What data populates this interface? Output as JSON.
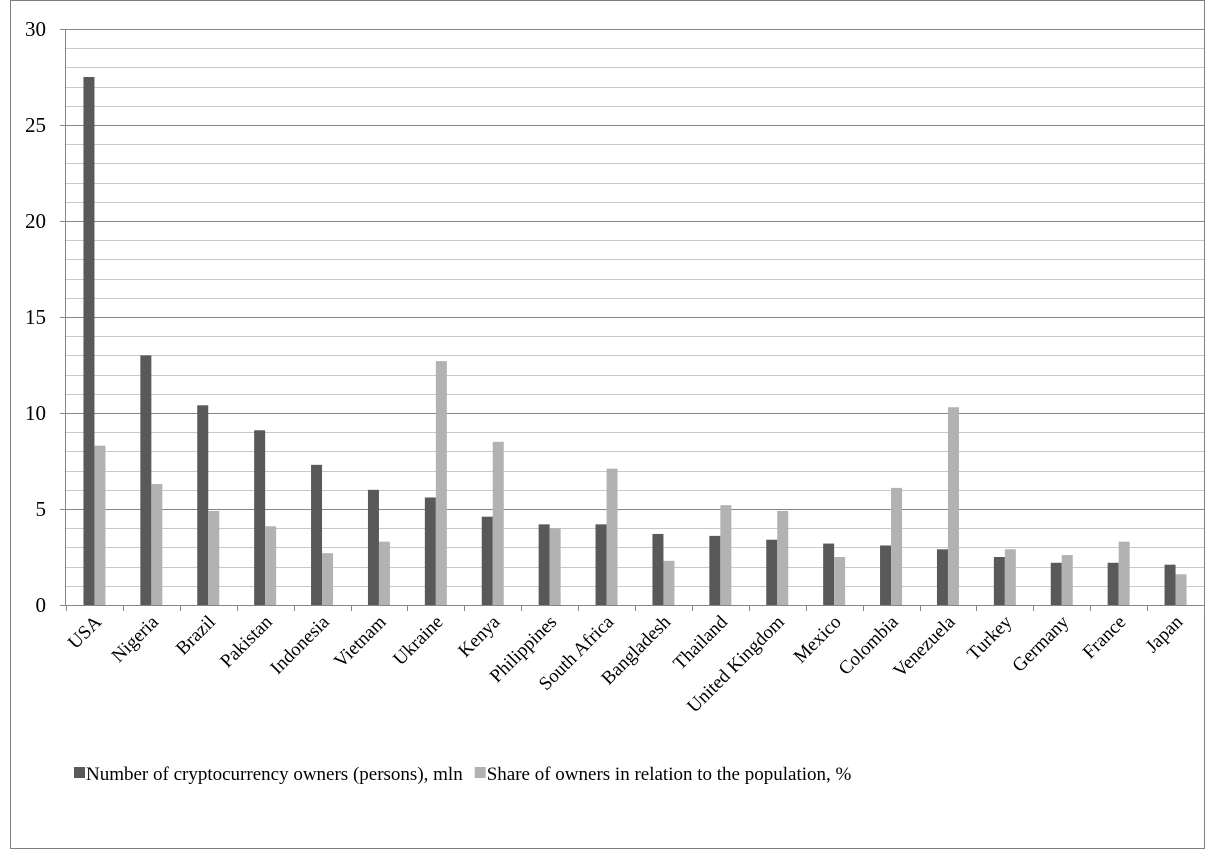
{
  "chart_data": {
    "type": "bar",
    "categories": [
      "USA",
      "Nigeria",
      "Brazil",
      "Pakistan",
      "Indonesia",
      "Vietnam",
      "Ukraine",
      "Kenya",
      "Philippines",
      "South Africa",
      "Bangladesh",
      "Thailand",
      "United Kingdom",
      "Mexico",
      "Colombia",
      "Venezuela",
      "Turkey",
      "Germany",
      "France",
      "Japan"
    ],
    "series": [
      {
        "name": "Number of cryptocurrency owners (persons), mln",
        "color": "#595959",
        "values": [
          27.5,
          13.0,
          10.4,
          9.1,
          7.3,
          6.0,
          5.6,
          4.6,
          4.2,
          4.2,
          3.7,
          3.6,
          3.4,
          3.2,
          3.1,
          2.9,
          2.5,
          2.2,
          2.2,
          2.1
        ]
      },
      {
        "name": "Share of owners in relation to the population, %",
        "color": "#b2b2b2",
        "values": [
          8.3,
          6.3,
          4.9,
          4.1,
          2.7,
          3.3,
          12.7,
          8.5,
          4.0,
          7.1,
          2.3,
          5.2,
          4.9,
          2.5,
          6.1,
          10.3,
          2.9,
          2.6,
          3.3,
          1.6
        ]
      }
    ],
    "ylim": [
      0,
      30
    ],
    "yticks": [
      "0",
      "5",
      "10",
      "15",
      "20",
      "25",
      "30"
    ],
    "y_minor_step": 1,
    "grid": true,
    "legend_position": "bottom"
  }
}
